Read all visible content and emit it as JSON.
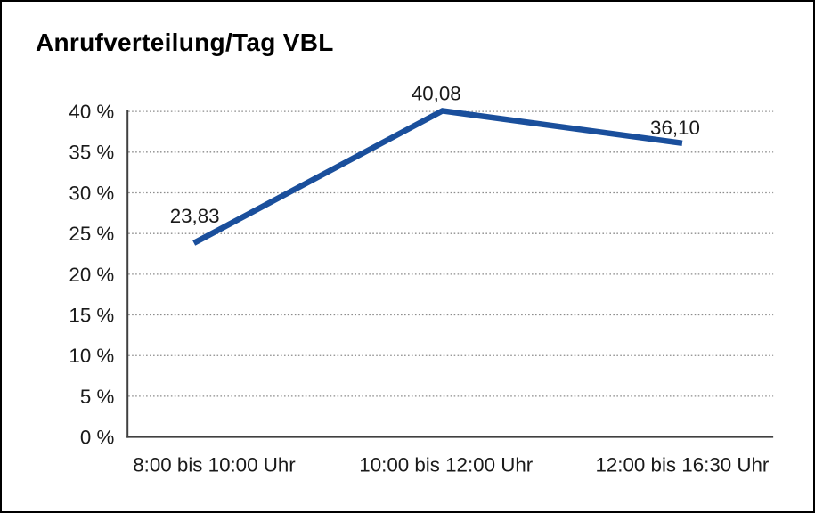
{
  "chart_data": {
    "type": "line",
    "title": "Anrufverteilung/Tag VBL",
    "categories": [
      "8:00 bis 10:00 Uhr",
      "10:00 bis 12:00 Uhr",
      "12:00 bis 16:30 Uhr"
    ],
    "values": [
      23.83,
      40.08,
      36.1
    ],
    "value_labels": [
      "23,83",
      "40,08",
      "36,10"
    ],
    "xlabel": "",
    "ylabel": "",
    "ylim": [
      0,
      40
    ],
    "ytick_step": 5,
    "ytick_labels": [
      "0 %",
      "5 %",
      "10 %",
      "15 %",
      "20 %",
      "25 %",
      "30 %",
      "35 %",
      "40 %"
    ],
    "legend": "none",
    "grid": "horizontal-dotted",
    "colors": {
      "line": "#1A4F9C",
      "axis": "#404040",
      "gridline": "#8C8C8C",
      "text": "#1A1A1A",
      "background": "#FFFFFF",
      "frame_border": "#000000"
    }
  }
}
